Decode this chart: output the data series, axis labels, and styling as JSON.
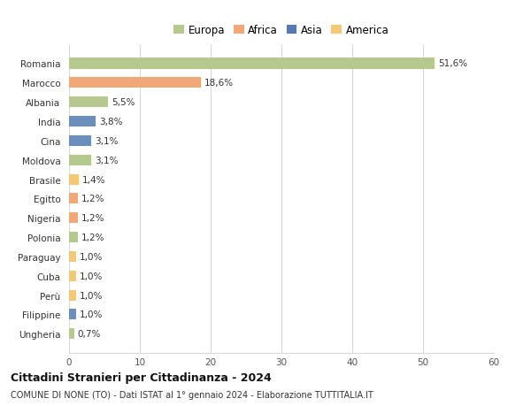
{
  "categories": [
    "Ungheria",
    "Filippine",
    "Perù",
    "Cuba",
    "Paraguay",
    "Polonia",
    "Nigeria",
    "Egitto",
    "Brasile",
    "Moldova",
    "Cina",
    "India",
    "Albania",
    "Marocco",
    "Romania"
  ],
  "values": [
    0.7,
    1.0,
    1.0,
    1.0,
    1.0,
    1.2,
    1.2,
    1.2,
    1.4,
    3.1,
    3.1,
    3.8,
    5.5,
    18.6,
    51.6
  ],
  "labels": [
    "0,7%",
    "1,0%",
    "1,0%",
    "1,0%",
    "1,0%",
    "1,2%",
    "1,2%",
    "1,2%",
    "1,4%",
    "3,1%",
    "3,1%",
    "3,8%",
    "5,5%",
    "18,6%",
    "51,6%"
  ],
  "colors": [
    "#b5c98e",
    "#6b8fbc",
    "#f5c878",
    "#f5c878",
    "#f5c878",
    "#b5c98e",
    "#f0a878",
    "#f0a878",
    "#f5c878",
    "#b5c98e",
    "#6b8fbc",
    "#6b8fbc",
    "#b5c98e",
    "#f0a878",
    "#b5c98e"
  ],
  "legend": [
    {
      "label": "Europa",
      "color": "#b5c98e"
    },
    {
      "label": "Africa",
      "color": "#f0a878"
    },
    {
      "label": "Asia",
      "color": "#5878b0"
    },
    {
      "label": "America",
      "color": "#f5c878"
    }
  ],
  "xlim": [
    0,
    60
  ],
  "xticks": [
    0,
    10,
    20,
    30,
    40,
    50,
    60
  ],
  "title": "Cittadini Stranieri per Cittadinanza - 2024",
  "subtitle": "COMUNE DI NONE (TO) - Dati ISTAT al 1° gennaio 2024 - Elaborazione TUTTITALIA.IT",
  "background_color": "#ffffff",
  "grid_color": "#d8d8d8",
  "bar_height": 0.55
}
